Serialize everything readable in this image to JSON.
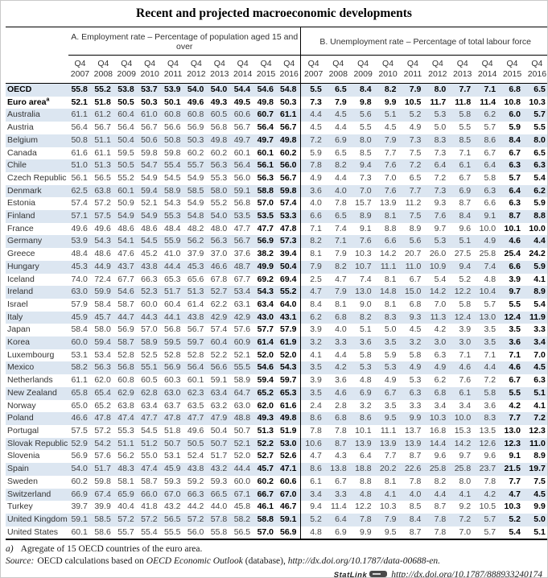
{
  "title": "Recent and projected macroeconomic developments",
  "table": {
    "panel_a_label": "A. Employment rate – Percentage of population aged 15 and over",
    "panel_b_label": "B. Unemployment rate – Percentage of total labour force",
    "quarter_label": "Q4",
    "years": [
      "2007",
      "2008",
      "2009",
      "2010",
      "2011",
      "2012",
      "2013",
      "2014",
      "2015",
      "2016"
    ],
    "projected_columns": [
      "2015",
      "2016"
    ],
    "rows": [
      {
        "name": "OECD",
        "sup": "",
        "bold": true,
        "emp": [
          "55.8",
          "55.2",
          "53.8",
          "53.7",
          "53.9",
          "54.0",
          "54.0",
          "54.4",
          "54.6",
          "54.8"
        ],
        "unemp": [
          "5.5",
          "6.5",
          "8.4",
          "8.2",
          "7.9",
          "8.0",
          "7.7",
          "7.1",
          "6.8",
          "6.5"
        ]
      },
      {
        "name": "Euro area",
        "sup": "a",
        "bold": true,
        "emp": [
          "52.1",
          "51.8",
          "50.5",
          "50.3",
          "50.1",
          "49.6",
          "49.3",
          "49.5",
          "49.8",
          "50.3"
        ],
        "unemp": [
          "7.3",
          "7.9",
          "9.8",
          "9.9",
          "10.5",
          "11.7",
          "11.8",
          "11.4",
          "10.8",
          "10.3"
        ]
      },
      {
        "name": "Australia",
        "sup": "",
        "bold": false,
        "emp": [
          "61.1",
          "61.2",
          "60.4",
          "61.0",
          "60.8",
          "60.8",
          "60.5",
          "60.6",
          "60.7",
          "61.1"
        ],
        "unemp": [
          "4.4",
          "4.5",
          "5.6",
          "5.1",
          "5.2",
          "5.3",
          "5.8",
          "6.2",
          "6.0",
          "5.7"
        ]
      },
      {
        "name": "Austria",
        "sup": "",
        "bold": false,
        "emp": [
          "56.4",
          "56.7",
          "56.4",
          "56.7",
          "56.6",
          "56.9",
          "56.8",
          "56.7",
          "56.4",
          "56.7"
        ],
        "unemp": [
          "4.5",
          "4.4",
          "5.5",
          "4.5",
          "4.9",
          "5.0",
          "5.5",
          "5.7",
          "5.9",
          "5.5"
        ]
      },
      {
        "name": "Belgium",
        "sup": "",
        "bold": false,
        "emp": [
          "50.8",
          "51.1",
          "50.4",
          "50.6",
          "50.8",
          "50.3",
          "49.8",
          "49.7",
          "49.7",
          "49.8"
        ],
        "unemp": [
          "7.2",
          "6.9",
          "8.0",
          "7.9",
          "7.3",
          "8.3",
          "8.5",
          "8.6",
          "8.4",
          "8.0"
        ]
      },
      {
        "name": "Canada",
        "sup": "",
        "bold": false,
        "emp": [
          "61.6",
          "61.1",
          "59.5",
          "59.8",
          "59.8",
          "60.2",
          "60.2",
          "60.1",
          "60.1",
          "60.2"
        ],
        "unemp": [
          "5.9",
          "6.5",
          "8.5",
          "7.7",
          "7.5",
          "7.3",
          "7.1",
          "6.7",
          "6.7",
          "6.5"
        ]
      },
      {
        "name": "Chile",
        "sup": "",
        "bold": false,
        "emp": [
          "51.0",
          "51.3",
          "50.5",
          "54.7",
          "55.4",
          "55.7",
          "56.3",
          "56.4",
          "56.1",
          "56.0"
        ],
        "unemp": [
          "7.8",
          "8.2",
          "9.4",
          "7.6",
          "7.2",
          "6.4",
          "6.1",
          "6.4",
          "6.3",
          "6.3"
        ]
      },
      {
        "name": "Czech Republic",
        "sup": "",
        "bold": false,
        "emp": [
          "56.1",
          "56.5",
          "55.2",
          "54.9",
          "54.5",
          "54.9",
          "55.3",
          "56.0",
          "56.3",
          "56.7"
        ],
        "unemp": [
          "4.9",
          "4.4",
          "7.3",
          "7.0",
          "6.5",
          "7.2",
          "6.7",
          "5.8",
          "5.7",
          "5.4"
        ]
      },
      {
        "name": "Denmark",
        "sup": "",
        "bold": false,
        "emp": [
          "62.5",
          "63.8",
          "60.1",
          "59.4",
          "58.9",
          "58.5",
          "58.0",
          "59.1",
          "58.8",
          "59.8"
        ],
        "unemp": [
          "3.6",
          "4.0",
          "7.0",
          "7.6",
          "7.7",
          "7.3",
          "6.9",
          "6.3",
          "6.4",
          "6.2"
        ]
      },
      {
        "name": "Estonia",
        "sup": "",
        "bold": false,
        "emp": [
          "57.4",
          "57.2",
          "50.9",
          "52.1",
          "54.3",
          "54.9",
          "55.2",
          "56.8",
          "57.0",
          "57.4"
        ],
        "unemp": [
          "4.0",
          "7.8",
          "15.7",
          "13.9",
          "11.2",
          "9.3",
          "8.7",
          "6.6",
          "6.3",
          "5.9"
        ]
      },
      {
        "name": "Finland",
        "sup": "",
        "bold": false,
        "emp": [
          "57.1",
          "57.5",
          "54.9",
          "54.9",
          "55.3",
          "54.8",
          "54.0",
          "53.5",
          "53.5",
          "53.3"
        ],
        "unemp": [
          "6.6",
          "6.5",
          "8.9",
          "8.1",
          "7.5",
          "7.6",
          "8.4",
          "9.1",
          "8.7",
          "8.8"
        ]
      },
      {
        "name": "France",
        "sup": "",
        "bold": false,
        "emp": [
          "49.6",
          "49.6",
          "48.6",
          "48.6",
          "48.4",
          "48.2",
          "48.0",
          "47.7",
          "47.7",
          "47.8"
        ],
        "unemp": [
          "7.1",
          "7.4",
          "9.1",
          "8.8",
          "8.9",
          "9.7",
          "9.6",
          "10.0",
          "10.1",
          "10.0"
        ]
      },
      {
        "name": "Germany",
        "sup": "",
        "bold": false,
        "emp": [
          "53.9",
          "54.3",
          "54.1",
          "54.5",
          "55.9",
          "56.2",
          "56.3",
          "56.7",
          "56.9",
          "57.3"
        ],
        "unemp": [
          "8.2",
          "7.1",
          "7.6",
          "6.6",
          "5.6",
          "5.3",
          "5.1",
          "4.9",
          "4.6",
          "4.4"
        ]
      },
      {
        "name": "Greece",
        "sup": "",
        "bold": false,
        "emp": [
          "48.4",
          "48.6",
          "47.6",
          "45.2",
          "41.0",
          "37.9",
          "37.0",
          "37.6",
          "38.2",
          "39.4"
        ],
        "unemp": [
          "8.1",
          "7.9",
          "10.3",
          "14.2",
          "20.7",
          "26.0",
          "27.5",
          "25.8",
          "25.4",
          "24.2"
        ]
      },
      {
        "name": "Hungary",
        "sup": "",
        "bold": false,
        "emp": [
          "45.3",
          "44.9",
          "43.7",
          "43.8",
          "44.4",
          "45.3",
          "46.6",
          "48.7",
          "49.9",
          "50.4"
        ],
        "unemp": [
          "7.9",
          "8.2",
          "10.7",
          "11.1",
          "11.0",
          "10.9",
          "9.4",
          "7.4",
          "6.6",
          "5.9"
        ]
      },
      {
        "name": "Iceland",
        "sup": "",
        "bold": false,
        "emp": [
          "74.0",
          "72.4",
          "67.7",
          "66.3",
          "65.3",
          "65.6",
          "67.8",
          "67.7",
          "69.2",
          "69.4"
        ],
        "unemp": [
          "2.5",
          "4.7",
          "7.4",
          "8.1",
          "6.7",
          "5.4",
          "5.2",
          "4.8",
          "3.9",
          "4.1"
        ]
      },
      {
        "name": "Ireland",
        "sup": "",
        "bold": false,
        "emp": [
          "63.0",
          "59.9",
          "54.6",
          "52.3",
          "51.7",
          "51.3",
          "52.7",
          "53.4",
          "54.3",
          "55.2"
        ],
        "unemp": [
          "4.7",
          "7.9",
          "13.0",
          "14.8",
          "15.0",
          "14.2",
          "12.2",
          "10.4",
          "9.7",
          "8.9"
        ]
      },
      {
        "name": "Israel",
        "sup": "",
        "bold": false,
        "emp": [
          "57.9",
          "58.4",
          "58.7",
          "60.0",
          "60.4",
          "61.4",
          "62.2",
          "63.1",
          "63.4",
          "64.0"
        ],
        "unemp": [
          "8.4",
          "8.1",
          "9.0",
          "8.1",
          "6.8",
          "7.0",
          "5.8",
          "5.7",
          "5.5",
          "5.4"
        ]
      },
      {
        "name": "Italy",
        "sup": "",
        "bold": false,
        "emp": [
          "45.9",
          "45.7",
          "44.7",
          "44.3",
          "44.1",
          "43.8",
          "42.9",
          "42.9",
          "43.0",
          "43.1"
        ],
        "unemp": [
          "6.2",
          "6.8",
          "8.2",
          "8.3",
          "9.3",
          "11.3",
          "12.4",
          "13.0",
          "12.4",
          "11.9"
        ]
      },
      {
        "name": "Japan",
        "sup": "",
        "bold": false,
        "emp": [
          "58.4",
          "58.0",
          "56.9",
          "57.0",
          "56.8",
          "56.7",
          "57.4",
          "57.6",
          "57.7",
          "57.9"
        ],
        "unemp": [
          "3.9",
          "4.0",
          "5.1",
          "5.0",
          "4.5",
          "4.2",
          "3.9",
          "3.5",
          "3.5",
          "3.3"
        ]
      },
      {
        "name": "Korea",
        "sup": "",
        "bold": false,
        "emp": [
          "60.0",
          "59.4",
          "58.7",
          "58.9",
          "59.5",
          "59.7",
          "60.4",
          "60.9",
          "61.4",
          "61.9"
        ],
        "unemp": [
          "3.2",
          "3.3",
          "3.6",
          "3.5",
          "3.2",
          "3.0",
          "3.0",
          "3.5",
          "3.6",
          "3.4"
        ]
      },
      {
        "name": "Luxembourg",
        "sup": "",
        "bold": false,
        "emp": [
          "53.1",
          "53.4",
          "52.8",
          "52.5",
          "52.8",
          "52.8",
          "52.2",
          "52.1",
          "52.0",
          "52.0"
        ],
        "unemp": [
          "4.1",
          "4.4",
          "5.8",
          "5.9",
          "5.8",
          "6.3",
          "7.1",
          "7.1",
          "7.1",
          "7.0"
        ]
      },
      {
        "name": "Mexico",
        "sup": "",
        "bold": false,
        "emp": [
          "58.2",
          "56.3",
          "56.8",
          "55.1",
          "56.9",
          "56.4",
          "56.6",
          "55.5",
          "54.6",
          "54.3"
        ],
        "unemp": [
          "3.5",
          "4.2",
          "5.3",
          "5.3",
          "4.9",
          "4.9",
          "4.6",
          "4.4",
          "4.6",
          "4.5"
        ]
      },
      {
        "name": "Netherlands",
        "sup": "",
        "bold": false,
        "emp": [
          "61.1",
          "62.0",
          "60.8",
          "60.5",
          "60.3",
          "60.1",
          "59.1",
          "58.9",
          "59.4",
          "59.7"
        ],
        "unemp": [
          "3.9",
          "3.6",
          "4.8",
          "4.9",
          "5.3",
          "6.2",
          "7.6",
          "7.2",
          "6.7",
          "6.3"
        ]
      },
      {
        "name": "New Zealand",
        "sup": "",
        "bold": false,
        "emp": [
          "65.8",
          "65.4",
          "62.9",
          "62.8",
          "63.0",
          "62.3",
          "63.4",
          "64.7",
          "65.2",
          "65.3"
        ],
        "unemp": [
          "3.5",
          "4.6",
          "6.9",
          "6.7",
          "6.3",
          "6.8",
          "6.1",
          "5.8",
          "5.5",
          "5.1"
        ]
      },
      {
        "name": "Norway",
        "sup": "",
        "bold": false,
        "emp": [
          "65.0",
          "65.2",
          "63.8",
          "63.4",
          "63.7",
          "63.5",
          "63.2",
          "63.0",
          "62.0",
          "61.6"
        ],
        "unemp": [
          "2.4",
          "2.8",
          "3.2",
          "3.5",
          "3.3",
          "3.4",
          "3.4",
          "3.6",
          "4.2",
          "4.1"
        ]
      },
      {
        "name": "Poland",
        "sup": "",
        "bold": false,
        "emp": [
          "46.6",
          "47.8",
          "47.4",
          "47.7",
          "47.8",
          "47.7",
          "47.9",
          "48.8",
          "49.3",
          "49.8"
        ],
        "unemp": [
          "8.6",
          "6.8",
          "8.6",
          "9.5",
          "9.9",
          "10.3",
          "10.0",
          "8.3",
          "7.7",
          "7.2"
        ]
      },
      {
        "name": "Portugal",
        "sup": "",
        "bold": false,
        "emp": [
          "57.5",
          "57.2",
          "55.3",
          "54.5",
          "51.8",
          "49.6",
          "50.4",
          "50.7",
          "51.3",
          "51.9"
        ],
        "unemp": [
          "7.8",
          "7.8",
          "10.1",
          "11.1",
          "13.7",
          "16.8",
          "15.3",
          "13.5",
          "13.0",
          "12.3"
        ]
      },
      {
        "name": "Slovak Republic",
        "sup": "",
        "bold": false,
        "emp": [
          "52.9",
          "54.2",
          "51.1",
          "51.2",
          "50.7",
          "50.5",
          "50.7",
          "52.1",
          "52.2",
          "53.0"
        ],
        "unemp": [
          "10.6",
          "8.7",
          "13.9",
          "13.9",
          "13.9",
          "14.4",
          "14.2",
          "12.6",
          "12.3",
          "11.0"
        ]
      },
      {
        "name": "Slovenia",
        "sup": "",
        "bold": false,
        "emp": [
          "56.9",
          "57.6",
          "56.2",
          "55.0",
          "53.1",
          "52.4",
          "51.7",
          "52.0",
          "52.7",
          "52.6"
        ],
        "unemp": [
          "4.7",
          "4.3",
          "6.4",
          "7.7",
          "8.7",
          "9.6",
          "9.7",
          "9.6",
          "9.1",
          "8.9"
        ]
      },
      {
        "name": "Spain",
        "sup": "",
        "bold": false,
        "emp": [
          "54.0",
          "51.7",
          "48.3",
          "47.4",
          "45.9",
          "43.8",
          "43.2",
          "44.4",
          "45.7",
          "47.1"
        ],
        "unemp": [
          "8.6",
          "13.8",
          "18.8",
          "20.2",
          "22.6",
          "25.8",
          "25.8",
          "23.7",
          "21.5",
          "19.7"
        ]
      },
      {
        "name": "Sweden",
        "sup": "",
        "bold": false,
        "emp": [
          "60.2",
          "59.8",
          "58.1",
          "58.7",
          "59.3",
          "59.2",
          "59.3",
          "60.0",
          "60.2",
          "60.6"
        ],
        "unemp": [
          "6.1",
          "6.7",
          "8.8",
          "8.1",
          "7.8",
          "8.2",
          "8.0",
          "7.8",
          "7.7",
          "7.5"
        ]
      },
      {
        "name": "Switzerland",
        "sup": "",
        "bold": false,
        "emp": [
          "66.9",
          "67.4",
          "65.9",
          "66.0",
          "67.0",
          "66.3",
          "66.5",
          "67.1",
          "66.7",
          "67.0"
        ],
        "unemp": [
          "3.4",
          "3.3",
          "4.8",
          "4.1",
          "4.0",
          "4.4",
          "4.1",
          "4.2",
          "4.7",
          "4.5"
        ]
      },
      {
        "name": "Turkey",
        "sup": "",
        "bold": false,
        "emp": [
          "39.7",
          "39.9",
          "40.4",
          "41.8",
          "43.2",
          "44.2",
          "44.0",
          "45.8",
          "46.1",
          "46.7"
        ],
        "unemp": [
          "9.4",
          "11.4",
          "12.2",
          "10.3",
          "8.5",
          "8.7",
          "9.2",
          "10.5",
          "10.3",
          "9.9"
        ]
      },
      {
        "name": "United Kingdom",
        "sup": "",
        "bold": false,
        "emp": [
          "59.1",
          "58.5",
          "57.2",
          "57.2",
          "56.5",
          "57.2",
          "57.8",
          "58.2",
          "58.8",
          "59.1"
        ],
        "unemp": [
          "5.2",
          "6.4",
          "7.8",
          "7.9",
          "8.4",
          "7.8",
          "7.2",
          "5.7",
          "5.2",
          "5.0"
        ]
      },
      {
        "name": "United States",
        "sup": "",
        "bold": false,
        "emp": [
          "60.1",
          "58.6",
          "55.7",
          "55.4",
          "55.5",
          "56.0",
          "55.8",
          "56.5",
          "57.0",
          "56.9"
        ],
        "unemp": [
          "4.8",
          "6.9",
          "9.9",
          "9.5",
          "8.7",
          "7.8",
          "7.0",
          "5.7",
          "5.4",
          "5.1"
        ]
      }
    ]
  },
  "footnote": {
    "marker": "a)",
    "text": "Agregate of 15 OECD countries of the euro area."
  },
  "source": {
    "label": "Source:",
    "segments": [
      {
        "text": "OECD calculations based on ",
        "italic": false
      },
      {
        "text": "OECD Economic Outlook",
        "italic": true
      },
      {
        "text": " (database), ",
        "italic": false
      },
      {
        "text": "http://dx.doi.org/10.1787/data-00688-en.",
        "italic": true
      }
    ]
  },
  "statlink": {
    "label": "StatLink",
    "url": "http://dx.doi.org/10.1787/888933240174"
  },
  "colors": {
    "row_shade": "#dce6f1",
    "rule": "#000000",
    "bold_text": "#000000",
    "body_text": "#454545"
  }
}
